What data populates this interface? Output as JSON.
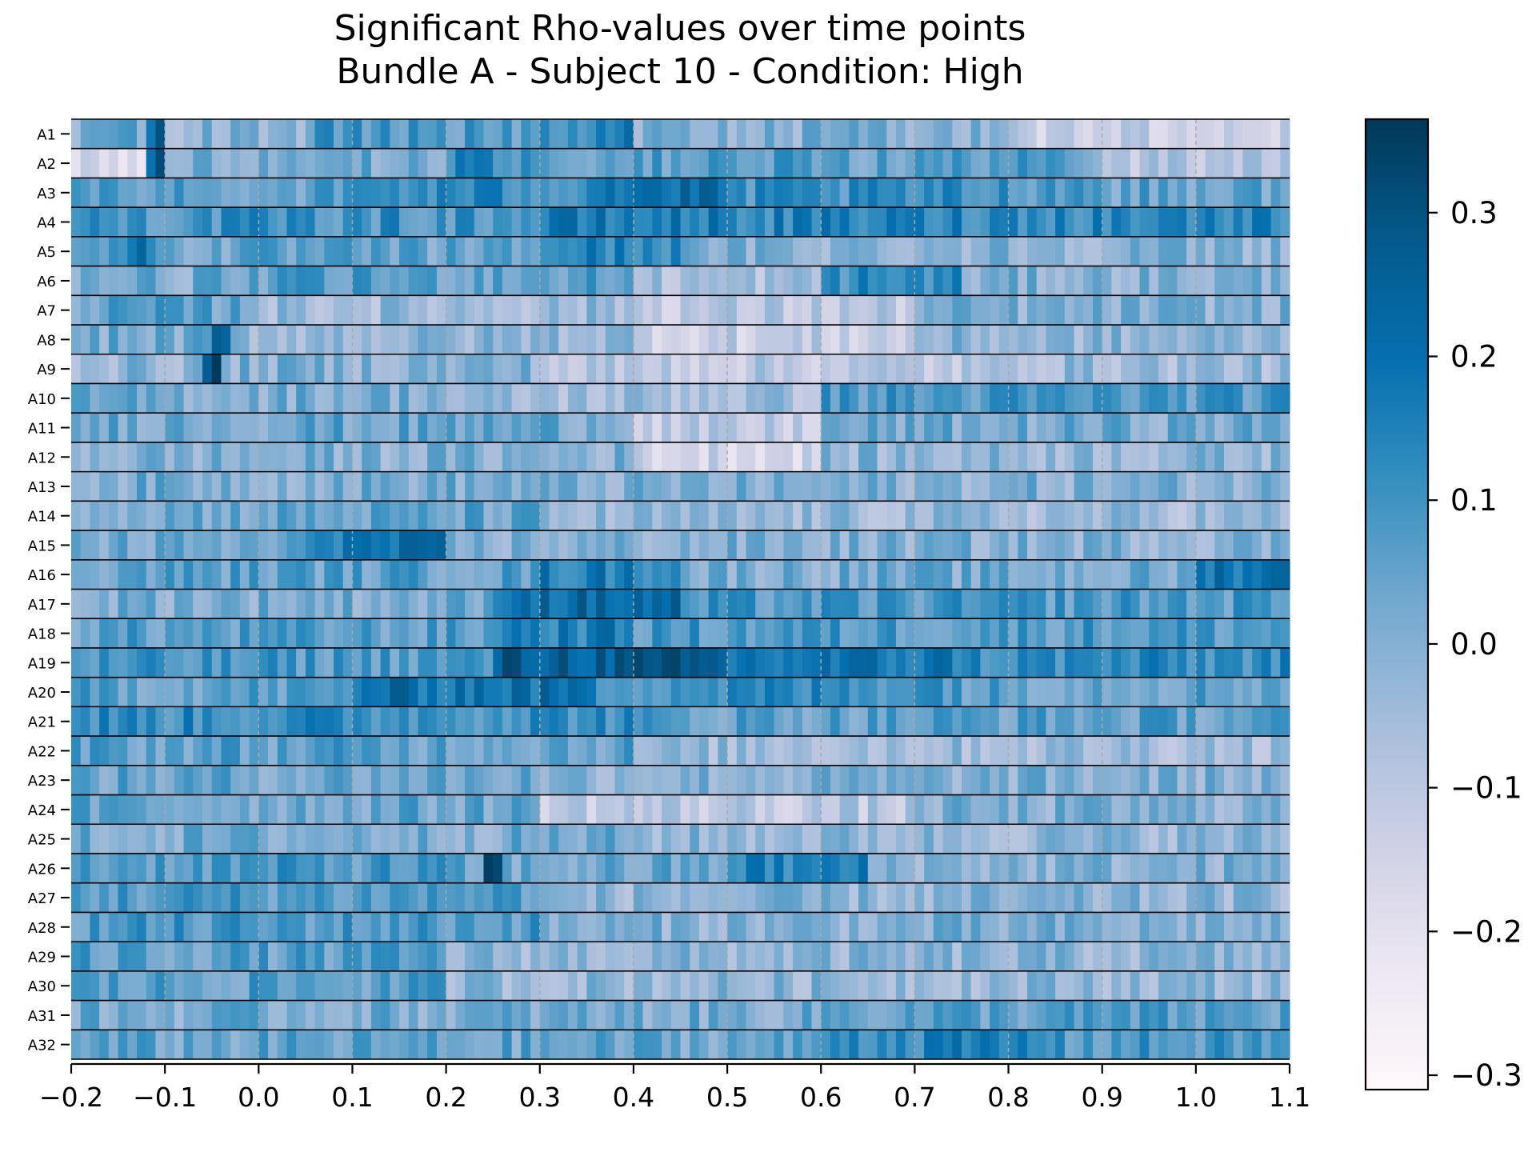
{
  "chart_data": {
    "type": "heatmap",
    "title_lines": [
      "Significant Rho-values over time points",
      "Bundle A - Subject 10 - Condition: High"
    ],
    "x_ticks": [
      "−0.2",
      "−0.1",
      "0.0",
      "0.1",
      "0.2",
      "0.3",
      "0.4",
      "0.5",
      "0.6",
      "0.7",
      "0.8",
      "0.9",
      "1.0",
      "1.1"
    ],
    "x_tick_values": [
      -0.2,
      -0.1,
      0.0,
      0.1,
      0.2,
      0.3,
      0.4,
      0.5,
      0.6,
      0.7,
      0.8,
      0.9,
      1.0,
      1.1
    ],
    "xlim": [
      -0.2,
      1.1
    ],
    "rows": [
      "A1",
      "A2",
      "A3",
      "A4",
      "A5",
      "A6",
      "A7",
      "A8",
      "A9",
      "A10",
      "A11",
      "A12",
      "A13",
      "A14",
      "A15",
      "A16",
      "A17",
      "A18",
      "A19",
      "A20",
      "A21",
      "A22",
      "A23",
      "A24",
      "A25",
      "A26",
      "A27",
      "A28",
      "A29",
      "A30",
      "A31",
      "A32"
    ],
    "n_time_bins": 130,
    "colorbar": {
      "ticks": [
        "−0.3",
        "−0.2",
        "−0.1",
        "0.0",
        "0.1",
        "0.2",
        "0.3"
      ],
      "tick_values": [
        -0.3,
        -0.2,
        -0.1,
        0.0,
        0.1,
        0.2,
        0.3
      ],
      "vmin": -0.31,
      "vmax": 0.365,
      "colormap": "PuBu",
      "color_stops": [
        "#fff7fb",
        "#ece7f2",
        "#d0d1e6",
        "#a6bddb",
        "#74a9cf",
        "#3690c0",
        "#0570b0",
        "#045a8d",
        "#023858"
      ]
    },
    "grid": "vertical dashed lines at x ticks; horizontal black separators between rows",
    "value_estimates": {
      "A1": [
        {
          "from": -0.2,
          "to": -0.15,
          "value": 0.0
        },
        {
          "from": -0.12,
          "to": -0.1,
          "value": 0.25
        },
        {
          "from": -0.1,
          "to": 0.05,
          "value": -0.02
        },
        {
          "from": 0.05,
          "to": 0.3,
          "value": 0.08
        },
        {
          "from": 0.3,
          "to": 0.4,
          "value": 0.14
        },
        {
          "from": 0.4,
          "to": 0.8,
          "value": 0.0
        },
        {
          "from": 0.8,
          "to": 1.1,
          "value": -0.12
        }
      ],
      "A2": [
        {
          "from": -0.2,
          "to": -0.12,
          "value": -0.15
        },
        {
          "from": -0.12,
          "to": -0.1,
          "value": 0.26
        },
        {
          "from": -0.1,
          "to": 0.2,
          "value": 0.02
        },
        {
          "from": 0.2,
          "to": 0.3,
          "value": 0.12
        },
        {
          "from": 0.3,
          "to": 0.9,
          "value": 0.06
        },
        {
          "from": 0.9,
          "to": 1.1,
          "value": -0.08
        }
      ],
      "A3": [
        {
          "from": -0.2,
          "to": 0.1,
          "value": 0.06
        },
        {
          "from": 0.1,
          "to": 0.35,
          "value": 0.12
        },
        {
          "from": 0.35,
          "to": 0.5,
          "value": 0.2
        },
        {
          "from": 0.5,
          "to": 0.9,
          "value": 0.1
        },
        {
          "from": 0.9,
          "to": 1.1,
          "value": 0.05
        }
      ],
      "A4": [
        {
          "from": -0.2,
          "to": 0.3,
          "value": 0.1
        },
        {
          "from": 0.3,
          "to": 0.5,
          "value": 0.16
        },
        {
          "from": 0.5,
          "to": 1.1,
          "value": 0.14
        }
      ],
      "A5": [
        {
          "from": -0.2,
          "to": -0.1,
          "value": 0.1
        },
        {
          "from": -0.13,
          "to": -0.12,
          "value": 0.28
        },
        {
          "from": -0.1,
          "to": 0.3,
          "value": 0.04
        },
        {
          "from": 0.3,
          "to": 0.45,
          "value": 0.14
        },
        {
          "from": 0.45,
          "to": 1.1,
          "value": 0.0
        }
      ],
      "A6": [
        {
          "from": -0.2,
          "to": 0.0,
          "value": 0.02
        },
        {
          "from": 0.0,
          "to": 0.4,
          "value": 0.06
        },
        {
          "from": 0.4,
          "to": 0.6,
          "value": -0.06
        },
        {
          "from": 0.6,
          "to": 0.75,
          "value": 0.12
        },
        {
          "from": 0.75,
          "to": 1.1,
          "value": 0.0
        }
      ],
      "A7": [
        {
          "from": -0.2,
          "to": 0.0,
          "value": 0.05
        },
        {
          "from": 0.0,
          "to": 0.4,
          "value": -0.04
        },
        {
          "from": 0.4,
          "to": 0.7,
          "value": -0.1
        },
        {
          "from": 0.7,
          "to": 1.1,
          "value": 0.0
        }
      ],
      "A8": [
        {
          "from": -0.2,
          "to": -0.05,
          "value": 0.02
        },
        {
          "from": -0.05,
          "to": -0.03,
          "value": 0.24
        },
        {
          "from": -0.03,
          "to": 0.4,
          "value": -0.02
        },
        {
          "from": 0.4,
          "to": 0.7,
          "value": -0.12
        },
        {
          "from": 0.7,
          "to": 1.1,
          "value": -0.02
        }
      ],
      "A9": [
        {
          "from": -0.2,
          "to": -0.06,
          "value": -0.02
        },
        {
          "from": -0.06,
          "to": -0.04,
          "value": 0.3
        },
        {
          "from": -0.04,
          "to": 0.3,
          "value": 0.0
        },
        {
          "from": 0.3,
          "to": 0.8,
          "value": -0.1
        },
        {
          "from": 0.8,
          "to": 1.1,
          "value": -0.04
        }
      ],
      "A10": [
        {
          "from": -0.2,
          "to": 0.2,
          "value": 0.02
        },
        {
          "from": 0.2,
          "to": 0.6,
          "value": -0.05
        },
        {
          "from": 0.6,
          "to": 1.1,
          "value": 0.08
        }
      ],
      "A11": [
        {
          "from": -0.2,
          "to": 0.4,
          "value": 0.04
        },
        {
          "from": 0.4,
          "to": 0.6,
          "value": -0.12
        },
        {
          "from": 0.6,
          "to": 1.1,
          "value": 0.02
        }
      ],
      "A12": [
        {
          "from": -0.2,
          "to": 0.4,
          "value": 0.0
        },
        {
          "from": 0.4,
          "to": 0.6,
          "value": -0.14
        },
        {
          "from": 0.6,
          "to": 1.1,
          "value": -0.02
        }
      ],
      "A13": [
        {
          "from": -0.2,
          "to": 0.3,
          "value": 0.02
        },
        {
          "from": 0.3,
          "to": 1.1,
          "value": 0.0
        }
      ],
      "A14": [
        {
          "from": -0.2,
          "to": 0.3,
          "value": 0.04
        },
        {
          "from": 0.3,
          "to": 1.1,
          "value": -0.04
        }
      ],
      "A15": [
        {
          "from": -0.2,
          "to": 0.05,
          "value": 0.02
        },
        {
          "from": 0.05,
          "to": 0.2,
          "value": 0.18
        },
        {
          "from": 0.2,
          "to": 1.1,
          "value": 0.0
        }
      ],
      "A16": [
        {
          "from": -0.2,
          "to": 0.3,
          "value": 0.06
        },
        {
          "from": 0.3,
          "to": 0.45,
          "value": 0.16
        },
        {
          "from": 0.45,
          "to": 1.0,
          "value": 0.02
        },
        {
          "from": 1.0,
          "to": 1.1,
          "value": 0.2
        }
      ],
      "A17": [
        {
          "from": -0.2,
          "to": 0.25,
          "value": 0.02
        },
        {
          "from": 0.25,
          "to": 0.45,
          "value": 0.22
        },
        {
          "from": 0.45,
          "to": 1.1,
          "value": 0.08
        }
      ],
      "A18": [
        {
          "from": -0.2,
          "to": 0.25,
          "value": 0.06
        },
        {
          "from": 0.25,
          "to": 0.4,
          "value": 0.16
        },
        {
          "from": 0.4,
          "to": 1.1,
          "value": 0.08
        }
      ],
      "A19": [
        {
          "from": -0.2,
          "to": 0.25,
          "value": 0.08
        },
        {
          "from": 0.25,
          "to": 0.5,
          "value": 0.26
        },
        {
          "from": 0.5,
          "to": 0.75,
          "value": 0.18
        },
        {
          "from": 0.75,
          "to": 1.1,
          "value": 0.12
        }
      ],
      "A20": [
        {
          "from": -0.2,
          "to": 0.1,
          "value": 0.06
        },
        {
          "from": 0.1,
          "to": 0.35,
          "value": 0.2
        },
        {
          "from": 0.35,
          "to": 0.75,
          "value": 0.12
        },
        {
          "from": 0.75,
          "to": 1.1,
          "value": 0.06
        }
      ],
      "A21": [
        {
          "from": -0.2,
          "to": 0.4,
          "value": 0.12
        },
        {
          "from": 0.4,
          "to": 1.1,
          "value": 0.06
        }
      ],
      "A22": [
        {
          "from": -0.2,
          "to": 0.4,
          "value": 0.06
        },
        {
          "from": 0.4,
          "to": 1.1,
          "value": -0.04
        }
      ],
      "A23": [
        {
          "from": -0.2,
          "to": 0.3,
          "value": 0.04
        },
        {
          "from": 0.3,
          "to": 1.1,
          "value": 0.0
        }
      ],
      "A24": [
        {
          "from": -0.2,
          "to": 0.3,
          "value": 0.04
        },
        {
          "from": 0.3,
          "to": 0.7,
          "value": -0.1
        },
        {
          "from": 0.7,
          "to": 1.1,
          "value": 0.0
        }
      ],
      "A25": [
        {
          "from": -0.2,
          "to": 0.4,
          "value": 0.02
        },
        {
          "from": 0.4,
          "to": 1.1,
          "value": -0.02
        }
      ],
      "A26": [
        {
          "from": -0.2,
          "to": 0.2,
          "value": 0.08
        },
        {
          "from": 0.24,
          "to": 0.26,
          "value": 0.3
        },
        {
          "from": 0.5,
          "to": 0.65,
          "value": 0.14
        },
        {
          "from": 0.65,
          "to": 1.1,
          "value": 0.0
        }
      ],
      "A27": [
        {
          "from": -0.2,
          "to": 0.3,
          "value": 0.08
        },
        {
          "from": 0.3,
          "to": 1.1,
          "value": -0.02
        }
      ],
      "A28": [
        {
          "from": -0.2,
          "to": 0.3,
          "value": 0.08
        },
        {
          "from": 0.3,
          "to": 1.1,
          "value": 0.0
        }
      ],
      "A29": [
        {
          "from": -0.2,
          "to": 0.2,
          "value": 0.06
        },
        {
          "from": 0.2,
          "to": 1.1,
          "value": -0.02
        }
      ],
      "A30": [
        {
          "from": -0.2,
          "to": 0.2,
          "value": 0.06
        },
        {
          "from": 0.2,
          "to": 1.1,
          "value": -0.02
        }
      ],
      "A31": [
        {
          "from": -0.2,
          "to": 0.6,
          "value": 0.02
        },
        {
          "from": 0.6,
          "to": 1.1,
          "value": 0.06
        }
      ],
      "A32": [
        {
          "from": -0.2,
          "to": 0.6,
          "value": 0.04
        },
        {
          "from": 0.6,
          "to": 0.85,
          "value": 0.14
        },
        {
          "from": 0.85,
          "to": 1.1,
          "value": 0.08
        }
      ]
    }
  }
}
